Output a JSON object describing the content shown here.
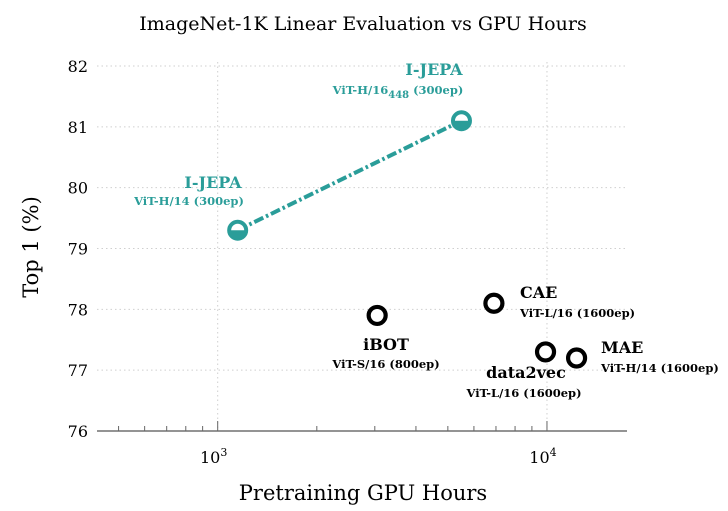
{
  "chart_data": {
    "type": "scatter",
    "title": "ImageNet-1K Linear Evaluation vs GPU Hours",
    "xlabel": "Pretraining GPU Hours",
    "ylabel": "Top 1 (%)",
    "x_scale": "log",
    "xlim": [
      430,
      17500
    ],
    "ylim": [
      76,
      82
    ],
    "x_ticks": [
      {
        "value": 1000,
        "base": "10",
        "exp": "3"
      },
      {
        "value": 10000,
        "base": "10",
        "exp": "4"
      }
    ],
    "y_ticks": [
      76,
      77,
      78,
      79,
      80,
      81,
      82
    ],
    "grid": true,
    "accent_color": "#2a9d99",
    "series": [
      {
        "name": "I-JEPA",
        "color": "#2a9d99",
        "connected": true,
        "points": [
          {
            "x": 1150,
            "y": 79.3,
            "label": "I-JEPA",
            "sub": "ViT-H/14 (300ep)",
            "sub_sub": ""
          },
          {
            "x": 5500,
            "y": 81.1,
            "label": "I-JEPA",
            "sub": "ViT-H/16",
            "sub_sub": "448",
            "sub_tail": " (300ep)"
          }
        ]
      },
      {
        "name": "",
        "color": "#000000",
        "connected": false,
        "points": [
          {
            "x": 3050,
            "y": 77.9,
            "label": "iBOT",
            "sub": "ViT-S/16 (800ep)"
          },
          {
            "x": 6900,
            "y": 78.1,
            "label": "CAE",
            "sub": "ViT-L/16 (1600ep)"
          },
          {
            "x": 9900,
            "y": 77.3,
            "label": "data2vec",
            "sub": "ViT-L/16 (1600ep)"
          },
          {
            "x": 12300,
            "y": 77.2,
            "label": "MAE",
            "sub": "ViT-H/14 (1600ep)"
          }
        ]
      }
    ]
  }
}
